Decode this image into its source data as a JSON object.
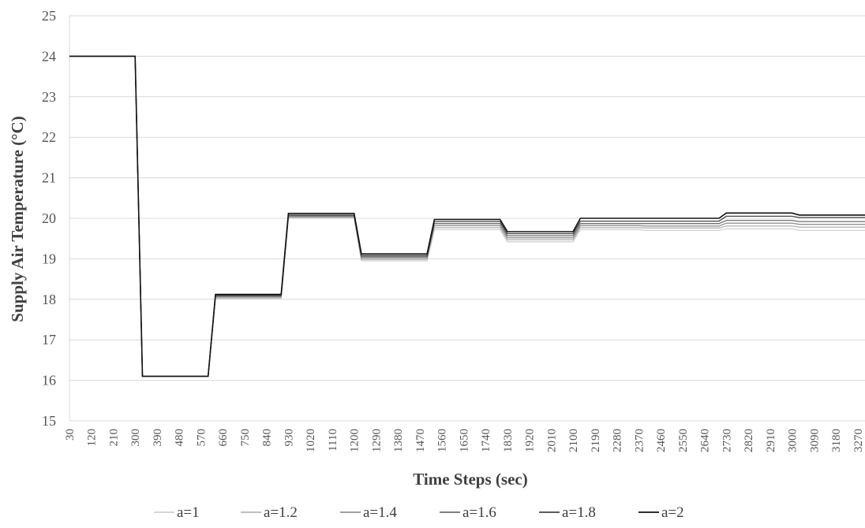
{
  "chart_data": {
    "type": "line",
    "title": "",
    "xlabel": "Time Steps (sec)",
    "ylabel": "Supply Air Temperature (°C)",
    "ylim": [
      15,
      25
    ],
    "yticks": [
      15,
      16,
      17,
      18,
      19,
      20,
      21,
      22,
      23,
      24,
      25
    ],
    "x_tick_labels": [
      "30",
      "120",
      "210",
      "300",
      "390",
      "480",
      "570",
      "660",
      "750",
      "840",
      "930",
      "1020",
      "1110",
      "1200",
      "1290",
      "1380",
      "1470",
      "1560",
      "1650",
      "1740",
      "1830",
      "1920",
      "2010",
      "2100",
      "2190",
      "2280",
      "2370",
      "2460",
      "2550",
      "2640",
      "2730",
      "2820",
      "2910",
      "3000",
      "3090",
      "3180",
      "3270"
    ],
    "x_range": [
      30,
      3300
    ],
    "grid": "horizontal",
    "legend_position": "bottom",
    "series": [
      {
        "name": "a=1",
        "color": "#d0d0d0",
        "x": [
          30,
          300,
          330,
          600,
          630,
          900,
          930,
          1200,
          1230,
          1500,
          1530,
          1800,
          1830,
          2100,
          2130,
          2370,
          2400,
          2700,
          2730,
          3000,
          3030,
          3300
        ],
        "y": [
          24,
          24,
          16.1,
          16.1,
          18.02,
          18.02,
          20.0,
          20.0,
          18.95,
          18.95,
          19.72,
          19.72,
          19.42,
          19.42,
          19.72,
          19.72,
          19.7,
          19.7,
          19.74,
          19.74,
          19.7,
          19.7
        ]
      },
      {
        "name": "a=1.2",
        "color": "#b5b5b5",
        "x": [
          30,
          300,
          330,
          600,
          630,
          900,
          930,
          1200,
          1230,
          1500,
          1530,
          1800,
          1830,
          2100,
          2130,
          2370,
          2400,
          2700,
          2730,
          3000,
          3030,
          3300
        ],
        "y": [
          24,
          24,
          16.1,
          16.1,
          18.04,
          18.04,
          20.02,
          20.02,
          18.98,
          18.98,
          19.77,
          19.77,
          19.47,
          19.47,
          19.77,
          19.77,
          19.76,
          19.76,
          19.81,
          19.81,
          19.78,
          19.78
        ]
      },
      {
        "name": "a=1.4",
        "color": "#939393",
        "x": [
          30,
          300,
          330,
          600,
          630,
          900,
          930,
          1200,
          1230,
          1500,
          1530,
          1800,
          1830,
          2100,
          2130,
          2370,
          2400,
          2700,
          2730,
          3000,
          3030,
          3300
        ],
        "y": [
          24,
          24,
          16.1,
          16.1,
          18.06,
          18.06,
          20.04,
          20.04,
          19.02,
          19.02,
          19.82,
          19.82,
          19.52,
          19.52,
          19.82,
          19.82,
          19.81,
          19.81,
          19.88,
          19.88,
          19.85,
          19.85
        ]
      },
      {
        "name": "a=1.6",
        "color": "#6e6e6e",
        "x": [
          30,
          300,
          330,
          600,
          630,
          900,
          930,
          1200,
          1230,
          1500,
          1530,
          1800,
          1830,
          2100,
          2130,
          2370,
          2400,
          2700,
          2730,
          3000,
          3030,
          3300
        ],
        "y": [
          24,
          24,
          16.1,
          16.1,
          18.08,
          18.08,
          20.06,
          20.06,
          19.05,
          19.05,
          19.87,
          19.87,
          19.57,
          19.57,
          19.87,
          19.87,
          19.87,
          19.87,
          19.95,
          19.95,
          19.92,
          19.92
        ]
      },
      {
        "name": "a=1.8",
        "color": "#454545",
        "x": [
          30,
          300,
          330,
          600,
          630,
          900,
          930,
          1200,
          1230,
          1500,
          1530,
          1800,
          1830,
          2100,
          2130,
          2370,
          2400,
          2700,
          2730,
          3000,
          3030,
          3300
        ],
        "y": [
          24,
          24,
          16.1,
          16.1,
          18.1,
          18.1,
          20.08,
          20.08,
          19.08,
          19.08,
          19.92,
          19.92,
          19.62,
          19.62,
          19.93,
          19.93,
          19.93,
          19.93,
          20.05,
          20.05,
          20.02,
          20.02
        ]
      },
      {
        "name": "a=2",
        "color": "#111111",
        "x": [
          30,
          300,
          330,
          600,
          630,
          900,
          930,
          1200,
          1230,
          1500,
          1530,
          1800,
          1830,
          2100,
          2130,
          2370,
          2400,
          2700,
          2730,
          3000,
          3030,
          3300
        ],
        "y": [
          24,
          24,
          16.1,
          16.1,
          18.12,
          18.12,
          20.12,
          20.12,
          19.12,
          19.12,
          19.97,
          19.97,
          19.67,
          19.67,
          20.0,
          20.0,
          20.0,
          20.0,
          20.13,
          20.13,
          20.08,
          20.08
        ]
      }
    ]
  }
}
